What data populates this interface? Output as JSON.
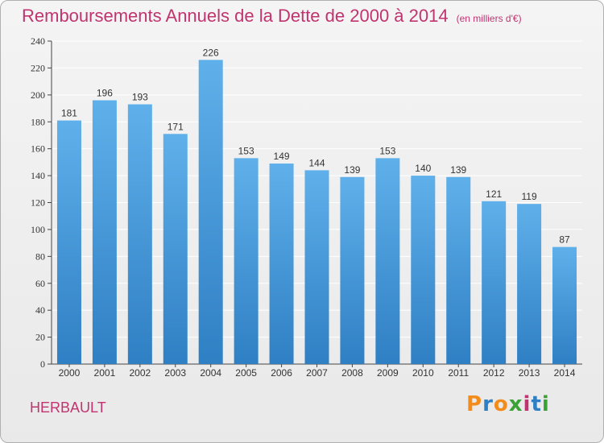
{
  "header": {
    "title": "Remboursements Annuels de la Dette de 2000 à 2014",
    "unit": "(en milliers d'€)"
  },
  "footer": {
    "place": "HERBAULT",
    "brand": "Proxiti"
  },
  "colors": {
    "title": "#c0346f",
    "bar_top": "#5fb0ea",
    "bar_bottom": "#2f7fc4",
    "grid": "#ffffff",
    "brand_letters": [
      "#f28c1c",
      "#2f7fc4",
      "#f28c1c",
      "#3aa335",
      "#c0346f",
      "#2f7fc4",
      "#3aa335"
    ]
  },
  "chart_data": {
    "type": "bar",
    "title": "Remboursements Annuels de la Dette de 2000 à 2014",
    "unit": "(en milliers d'€)",
    "categories": [
      "2000",
      "2001",
      "2002",
      "2003",
      "2004",
      "2005",
      "2006",
      "2007",
      "2008",
      "2009",
      "2010",
      "2011",
      "2012",
      "2013",
      "2014"
    ],
    "values": [
      181,
      196,
      193,
      171,
      226,
      153,
      149,
      144,
      139,
      153,
      140,
      139,
      121,
      119,
      87
    ],
    "ylim": [
      0,
      240
    ],
    "yticks": [
      0,
      20,
      40,
      60,
      80,
      100,
      120,
      140,
      160,
      180,
      200,
      220,
      240
    ],
    "grid": true,
    "data_labels": true
  }
}
